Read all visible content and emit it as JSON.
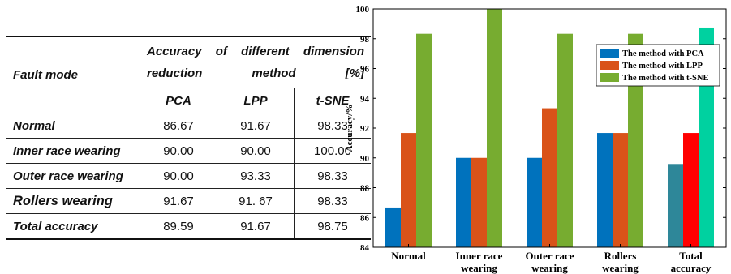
{
  "table": {
    "header": {
      "fault_mode": "Fault mode",
      "accuracy_title": "Accuracy of different dimension reduction method [%]",
      "methods": [
        "PCA",
        "LPP",
        "t-SNE"
      ]
    },
    "rows": [
      {
        "label": "Normal",
        "values": [
          "86.67",
          "91.67",
          "98.33"
        ]
      },
      {
        "label": "Inner race wearing",
        "values": [
          "90.00",
          "90.00",
          "100.00"
        ]
      },
      {
        "label": "Outer race wearing",
        "values": [
          "90.00",
          "93.33",
          "98.33"
        ]
      },
      {
        "label": "Rollers wearing",
        "values": [
          "91.67",
          "91. 67",
          "98.33"
        ]
      },
      {
        "label": "Total accuracy",
        "values": [
          "89.59",
          "91.67",
          "98.75"
        ]
      }
    ]
  },
  "chart_data": {
    "type": "bar",
    "categories": [
      "Normal",
      "Inner race\nwearing",
      "Outer race\nwearing",
      "Rollers\nwearing",
      "Total\naccuracy"
    ],
    "series": [
      {
        "name": "The method with PCA",
        "values": [
          86.67,
          90.0,
          90.0,
          91.67,
          89.59
        ],
        "color": "#0072bd",
        "last_color": "#2e8799"
      },
      {
        "name": "The method with LPP",
        "values": [
          91.67,
          90.0,
          93.33,
          91.67,
          91.67
        ],
        "color": "#d95319",
        "last_color": "#ff0000"
      },
      {
        "name": "The method with t-SNE",
        "values": [
          98.33,
          100.0,
          98.33,
          98.33,
          98.75
        ],
        "color": "#77ac30",
        "last_color": "#00d1a0"
      }
    ],
    "ylabel": "Accuracy/%",
    "xlabel": "",
    "ylim": [
      84,
      100
    ],
    "yticks": [
      "84",
      "86",
      "88",
      "90",
      "92",
      "94",
      "96",
      "98",
      "100"
    ],
    "legend_position": "top-right",
    "grid": false
  }
}
